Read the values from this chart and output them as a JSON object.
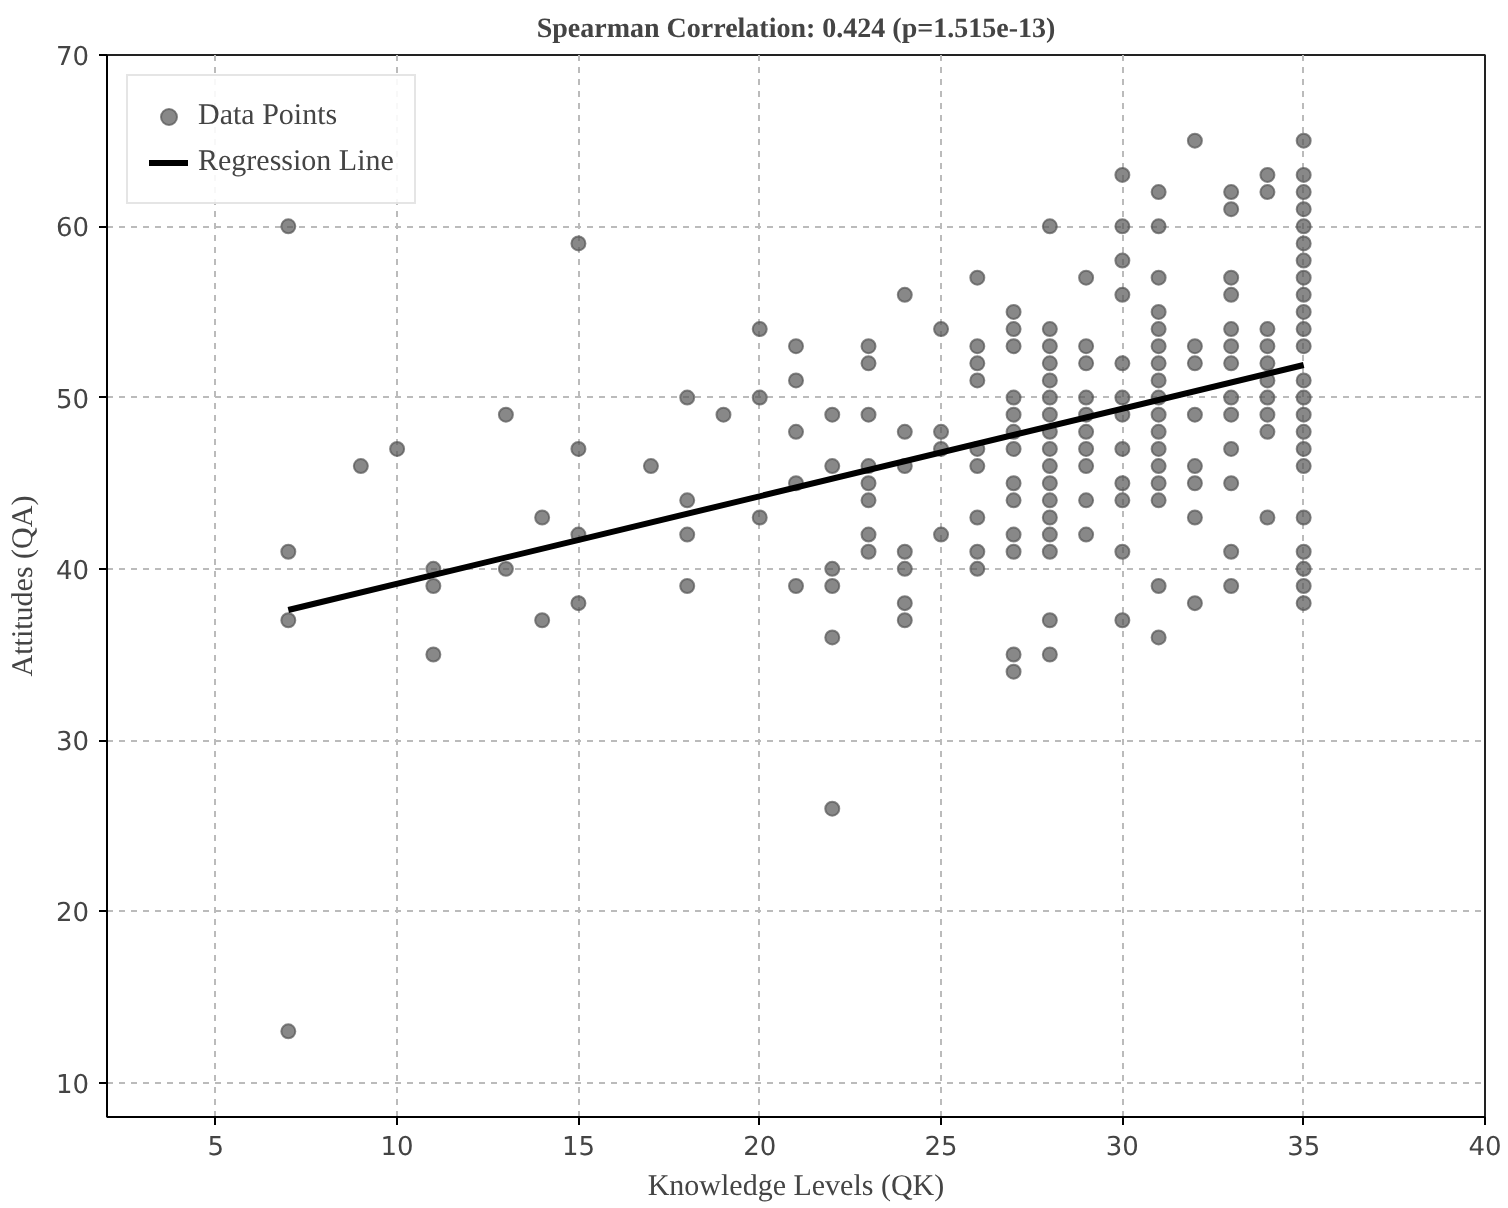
{
  "chart_data": {
    "type": "scatter",
    "title": "Spearman Correlation: 0.424 (p=1.515e-13)",
    "xlabel": "Knowledge Levels (QK)",
    "ylabel": "Attitudes (QA)",
    "xlim": [
      2,
      40
    ],
    "ylim": [
      8,
      70
    ],
    "xticks": [
      5,
      10,
      15,
      20,
      25,
      30,
      35,
      40
    ],
    "yticks": [
      10,
      20,
      30,
      40,
      50,
      60,
      70
    ],
    "grid": true,
    "legend": "top left",
    "marker": "circle",
    "series": [
      {
        "name": "Data Points",
        "color": "#555555",
        "x": [
          7,
          7,
          7,
          7,
          9,
          10,
          11,
          11,
          11,
          13,
          13,
          14,
          14,
          15,
          15,
          15,
          15,
          17,
          18,
          18,
          18,
          18,
          19,
          20,
          20,
          20,
          21,
          21,
          21,
          21,
          21,
          22,
          22,
          22,
          22,
          22,
          22,
          23,
          23,
          23,
          23,
          23,
          23,
          23,
          23,
          24,
          24,
          24,
          24,
          24,
          24,
          24,
          25,
          25,
          25,
          25,
          26,
          26,
          26,
          26,
          26,
          26,
          26,
          26,
          26,
          27,
          27,
          27,
          27,
          27,
          27,
          27,
          27,
          27,
          27,
          27,
          27,
          27,
          28,
          28,
          28,
          28,
          28,
          28,
          28,
          28,
          28,
          28,
          28,
          28,
          28,
          28,
          28,
          28,
          28,
          29,
          29,
          29,
          29,
          29,
          29,
          29,
          29,
          29,
          29,
          30,
          30,
          30,
          30,
          30,
          30,
          30,
          30,
          30,
          30,
          30,
          30,
          31,
          31,
          31,
          31,
          31,
          31,
          31,
          31,
          31,
          31,
          31,
          31,
          31,
          31,
          31,
          31,
          31,
          32,
          32,
          32,
          32,
          32,
          32,
          32,
          32,
          33,
          33,
          33,
          33,
          33,
          33,
          33,
          33,
          33,
          33,
          33,
          33,
          33,
          34,
          34,
          34,
          34,
          34,
          34,
          34,
          34,
          34,
          34,
          35,
          35,
          35,
          35,
          35,
          35,
          35,
          35,
          35,
          35,
          35,
          35,
          35,
          35,
          35,
          35,
          35,
          35,
          35,
          35,
          35,
          35,
          35
        ],
        "values": [
          60,
          41,
          37,
          13,
          46,
          47,
          40,
          39,
          35,
          49,
          40,
          43,
          37,
          59,
          47,
          42,
          38,
          46,
          50,
          44,
          42,
          39,
          49,
          54,
          50,
          43,
          53,
          51,
          48,
          45,
          39,
          49,
          46,
          40,
          39,
          36,
          26,
          53,
          52,
          49,
          46,
          45,
          44,
          42,
          41,
          56,
          48,
          46,
          41,
          40,
          38,
          37,
          54,
          48,
          47,
          42,
          57,
          53,
          52,
          51,
          47,
          46,
          43,
          41,
          40,
          55,
          54,
          53,
          50,
          49,
          48,
          47,
          45,
          44,
          42,
          41,
          35,
          34,
          60,
          54,
          53,
          52,
          51,
          50,
          49,
          48,
          47,
          46,
          45,
          44,
          43,
          42,
          41,
          37,
          35,
          57,
          53,
          52,
          50,
          49,
          48,
          47,
          46,
          44,
          42,
          63,
          60,
          58,
          56,
          52,
          50,
          49,
          47,
          45,
          44,
          41,
          37,
          62,
          60,
          57,
          55,
          54,
          53,
          52,
          51,
          50,
          49,
          48,
          47,
          46,
          45,
          44,
          39,
          36,
          65,
          53,
          52,
          49,
          46,
          45,
          43,
          38,
          62,
          61,
          57,
          56,
          54,
          53,
          52,
          50,
          49,
          47,
          45,
          41,
          39,
          63,
          62,
          54,
          53,
          52,
          51,
          50,
          49,
          48,
          43,
          65,
          63,
          62,
          61,
          60,
          59,
          58,
          57,
          56,
          55,
          54,
          53,
          51,
          50,
          49,
          48,
          47,
          46,
          43,
          41,
          40,
          39,
          38
        ]
      },
      {
        "name": "Regression Line",
        "type": "line",
        "marker": "none",
        "color": "#000000",
        "x": [
          7,
          35
        ],
        "values": [
          37.6,
          51.9
        ]
      }
    ]
  }
}
